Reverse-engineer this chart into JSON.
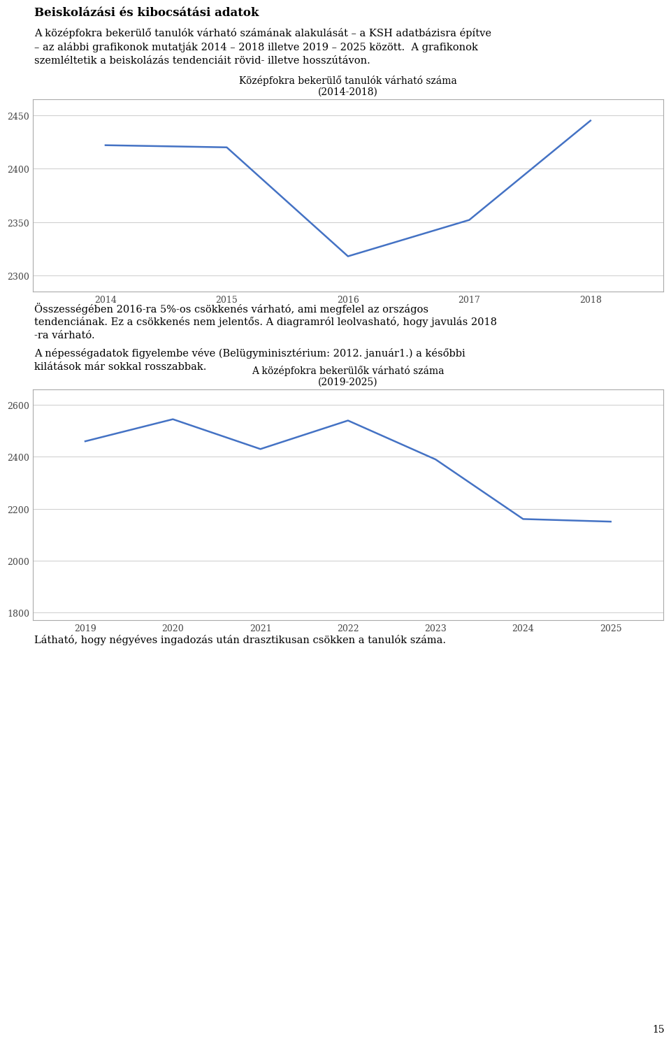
{
  "page_bg": "#ffffff",
  "heading": "Beiskolázási és kibocsátási adatok",
  "para1_lines": [
    "A középfokra bekerülő tanulók várható számának alakulását – a KSH adatbázisra építve",
    "– az alábbi grafikonok mutatják 2014 – 2018 illetve 2019 – 2025 között.  A grafikonok",
    "szemléltetik a beiskolázás tendenciáit rövid- illetve hosszútávon."
  ],
  "chart1_title_line1": "Középfokra bekerülő tanulók várható száma",
  "chart1_title_line2": "(2014-2018)",
  "chart1_x": [
    2014,
    2015,
    2016,
    2017,
    2018
  ],
  "chart1_y": [
    2422,
    2420,
    2318,
    2352,
    2445
  ],
  "chart1_ylim": [
    2285,
    2465
  ],
  "chart1_yticks": [
    2300,
    2350,
    2400,
    2450
  ],
  "chart1_xticks": [
    2014,
    2015,
    2016,
    2017,
    2018
  ],
  "chart1_xlim": [
    2013.4,
    2018.6
  ],
  "para2_lines": [
    "Összességében 2016-ra 5%-os csökkenés várható, ami megfelel az országos",
    "tendenciának. Ez a csökkenés nem jelentős. A diagramról leolvasható, hogy javulás 2018",
    "-ra várható."
  ],
  "para3_lines": [
    "A népességadatok figyelembe véve (Belügyminisztérium: 2012. január1.) a későbbi",
    "kilátások már sokkal rosszabbak."
  ],
  "chart2_title_line1": "A középfokra bekerülők várható száma",
  "chart2_title_line2": "(2019-2025)",
  "chart2_x": [
    2019,
    2020,
    2021,
    2022,
    2023,
    2024,
    2025
  ],
  "chart2_y": [
    2460,
    2545,
    2430,
    2540,
    2390,
    2160,
    2150
  ],
  "chart2_ylim": [
    1770,
    2660
  ],
  "chart2_yticks": [
    1800,
    2000,
    2200,
    2400,
    2600
  ],
  "chart2_xticks": [
    2019,
    2020,
    2021,
    2022,
    2023,
    2024,
    2025
  ],
  "chart2_xlim": [
    2018.4,
    2025.6
  ],
  "para4": "Látható, hogy négyéves ingadozás után drasztikusan csökken a tanulók száma.",
  "page_number": "15",
  "line_color": "#4472c4",
  "line_width": 1.8,
  "chart_bg": "#ffffff",
  "chart_border": "#aaaaaa",
  "grid_color": "#cccccc",
  "tick_color": "#444444",
  "text_color": "#000000",
  "heading_fontsize": 12,
  "title_fontsize": 10,
  "body_fontsize": 10.5,
  "tick_fontsize": 9,
  "pagenum_fontsize": 10
}
